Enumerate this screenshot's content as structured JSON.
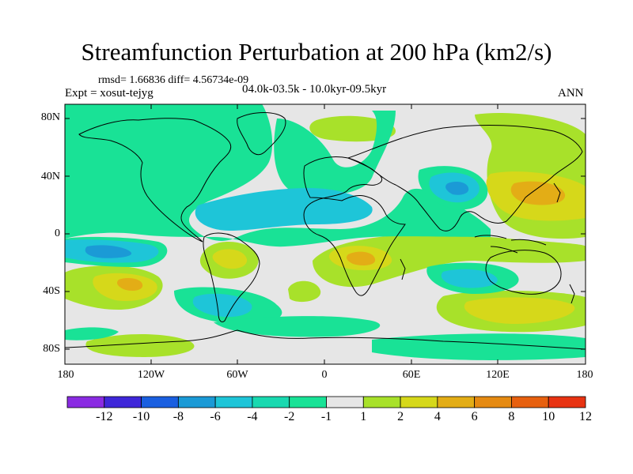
{
  "title": "Streamfunction Perturbation at 200 hPa (km2/s)",
  "stats": "rmsd= 1.66836 diff= 4.56734e-09",
  "experiment": "Expt = xosut-tejyg",
  "period": "04.0k-03.5k - 10.0kyr-09.5kyr",
  "season": "ANN",
  "lat_ticks": [
    "80N",
    "40N",
    "0",
    "40S",
    "80S"
  ],
  "lon_ticks": [
    "180",
    "120W",
    "60W",
    "0",
    "60E",
    "120E",
    "180"
  ],
  "colorbar": {
    "labels": [
      "-12",
      "-10",
      "-8",
      "-6",
      "-4",
      "-2",
      "-1",
      "1",
      "2",
      "4",
      "6",
      "8",
      "10",
      "12"
    ],
    "colors": [
      "#8a2be2",
      "#3f27d9",
      "#1a5fe0",
      "#1b9ad6",
      "#1ec5d8",
      "#19d9b0",
      "#19e296",
      "#e6e6e6",
      "#a8e12a",
      "#d6d81a",
      "#e3ad16",
      "#e58a12",
      "#e7600f",
      "#e83312"
    ]
  },
  "map_background": "#e6e6e6",
  "coastline_color": "#000000"
}
